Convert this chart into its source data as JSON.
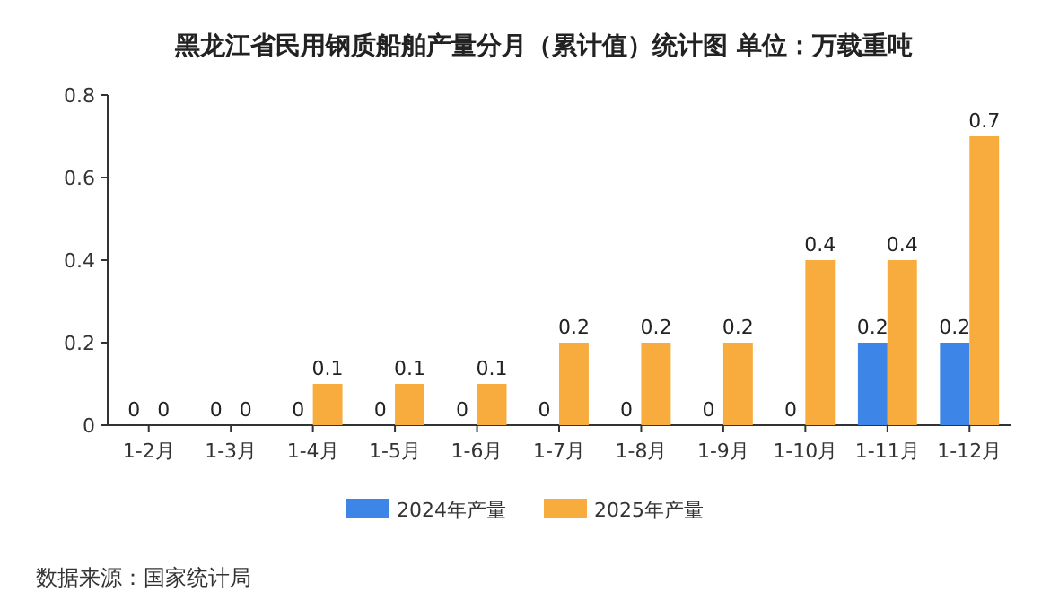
{
  "chart_data": {
    "type": "bar",
    "title": "黑龙江省民用钢质船舶产量分月（累计值）统计图 单位：万载重吨",
    "categories": [
      "1-2月",
      "1-3月",
      "1-4月",
      "1-5月",
      "1-6月",
      "1-7月",
      "1-8月",
      "1-9月",
      "1-10月",
      "1-11月",
      "1-12月"
    ],
    "series": [
      {
        "name": "2024年产量",
        "color": "#3d85e6",
        "values": [
          0,
          0,
          0,
          0,
          0,
          0,
          0,
          0,
          0,
          0.2,
          0.2
        ]
      },
      {
        "name": "2025年产量",
        "color": "#f7ac3d",
        "values": [
          0,
          0,
          0.1,
          0.1,
          0.1,
          0.2,
          0.2,
          0.2,
          0.4,
          0.4,
          0.7
        ]
      }
    ],
    "ylim": [
      0,
      0.8
    ],
    "yticks": [
      0,
      0.2,
      0.4,
      0.6,
      0.8
    ],
    "data_labels": true,
    "legend": "bottom",
    "grid": false,
    "annotations": [
      "数据来源：国家统计局"
    ]
  }
}
